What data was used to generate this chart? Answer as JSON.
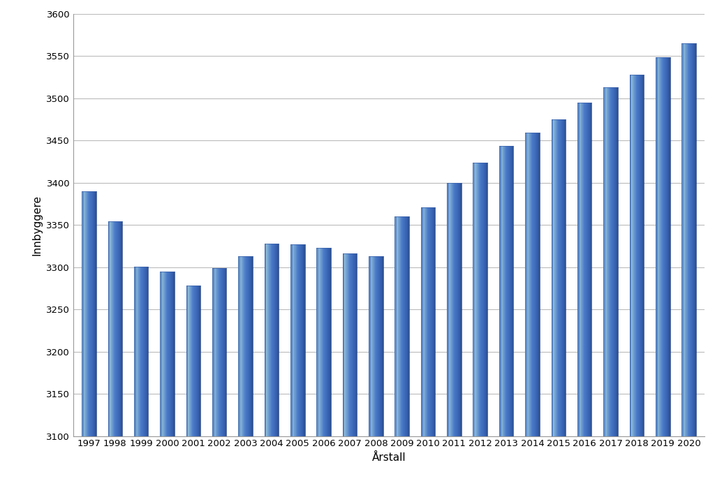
{
  "years": [
    1997,
    1998,
    1999,
    2000,
    2001,
    2002,
    2003,
    2004,
    2005,
    2006,
    2007,
    2008,
    2009,
    2010,
    2011,
    2012,
    2013,
    2014,
    2015,
    2016,
    2017,
    2018,
    2019,
    2020
  ],
  "values": [
    3390,
    3354,
    3301,
    3295,
    3278,
    3299,
    3313,
    3328,
    3327,
    3323,
    3316,
    3313,
    3360,
    3371,
    3400,
    3424,
    3444,
    3459,
    3475,
    3495,
    3513,
    3528,
    3549,
    3565
  ],
  "bar_color_main": "#4472C4",
  "bar_color_light": "#7BADD6",
  "bar_color_dark": "#2E5FA3",
  "xlabel": "Årstall",
  "ylabel": "Innbyggere",
  "ylim": [
    3100,
    3600
  ],
  "yticks": [
    3100,
    3150,
    3200,
    3250,
    3300,
    3350,
    3400,
    3450,
    3500,
    3550,
    3600
  ],
  "background_color": "#ffffff",
  "grid_color": "#bbbbbb",
  "tick_label_fontsize": 9.5,
  "axis_label_fontsize": 11,
  "bar_width": 0.55
}
